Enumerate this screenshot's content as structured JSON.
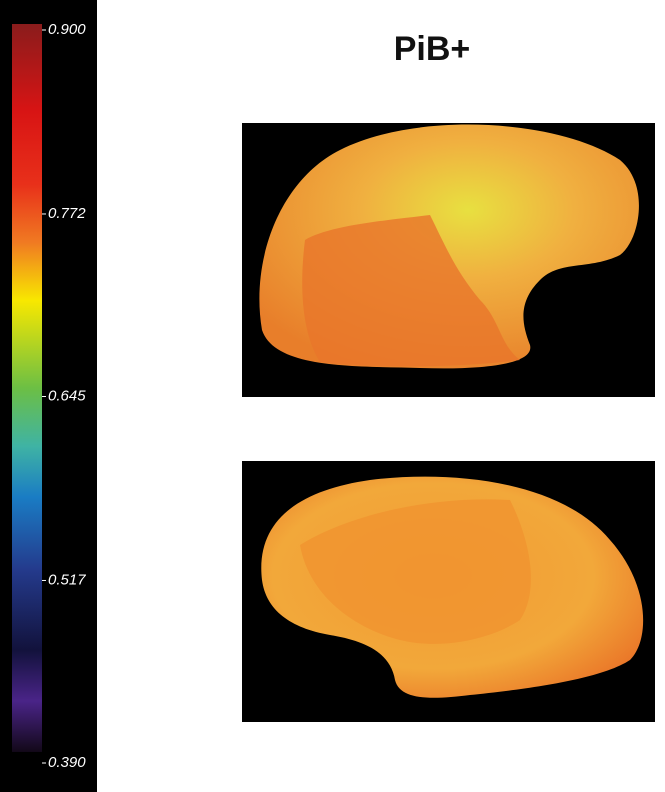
{
  "title": "PiB+",
  "colorbar": {
    "lim": [
      0.39,
      0.9
    ],
    "ticks": [
      {
        "value": 0.9,
        "label": "0.900"
      },
      {
        "value": 0.772,
        "label": "0.772"
      },
      {
        "value": 0.645,
        "label": "0.645"
      },
      {
        "value": 0.517,
        "label": "0.517"
      },
      {
        "value": 0.39,
        "label": "0.390"
      }
    ]
  }
}
